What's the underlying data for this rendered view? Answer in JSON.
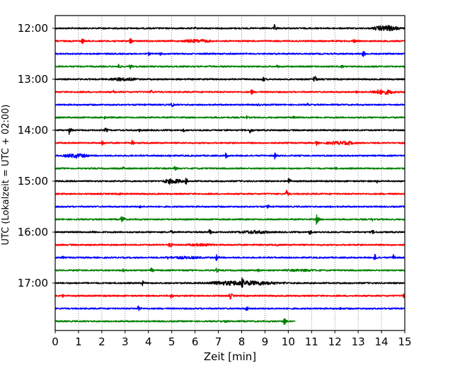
{
  "chart_data": {
    "type": "line",
    "chart_subtype": "helicorder",
    "xlabel": "Zeit  [min]",
    "ylabel": "UTC (Lokalzeit = UTC + 02:00)",
    "xlim": [
      0,
      15
    ],
    "x_ticks": [
      "0",
      "1",
      "2",
      "3",
      "4",
      "5",
      "6",
      "7",
      "8",
      "9",
      "10",
      "11",
      "12",
      "13",
      "14",
      "15"
    ],
    "y_tick_labels": [
      "12:00",
      "13:00",
      "14:00",
      "15:00",
      "16:00",
      "17:00"
    ],
    "row_minutes": 15,
    "row_start_times": [
      "12:00",
      "12:15",
      "12:30",
      "12:45",
      "13:00",
      "13:15",
      "13:30",
      "13:45",
      "14:00",
      "14:15",
      "14:30",
      "14:45",
      "15:00",
      "15:15",
      "15:30",
      "15:45",
      "16:00",
      "16:15",
      "16:30",
      "16:45",
      "17:00",
      "17:15",
      "17:30",
      "17:45"
    ],
    "color_cycle": [
      "#000000",
      "#ff0000",
      "#0000ff",
      "#008000"
    ],
    "last_row_end_minute": 10.3,
    "vertical_grid": "dotted",
    "events": [
      {
        "row": 0,
        "t": 9.4,
        "a": 6
      },
      {
        "row": 0,
        "t": 14.2,
        "a": 5
      },
      {
        "row": 0,
        "t": 3.1,
        "a": 2
      },
      {
        "row": 0,
        "t": 6.0,
        "a": 2
      },
      {
        "row": 1,
        "t": 1.15,
        "a": 5
      },
      {
        "row": 1,
        "t": 3.2,
        "a": 6
      },
      {
        "row": 1,
        "t": 2.5,
        "a": 3
      },
      {
        "row": 1,
        "t": 12.8,
        "a": 4
      },
      {
        "row": 1,
        "t": 6.5,
        "a": 2
      },
      {
        "row": 2,
        "t": 4.0,
        "a": 3
      },
      {
        "row": 2,
        "t": 4.5,
        "a": 3
      },
      {
        "row": 2,
        "t": 13.2,
        "a": 6
      },
      {
        "row": 2,
        "t": 7.5,
        "a": 2
      },
      {
        "row": 3,
        "t": 2.7,
        "a": 5
      },
      {
        "row": 3,
        "t": 3.2,
        "a": 5
      },
      {
        "row": 3,
        "t": 9.5,
        "a": 3
      },
      {
        "row": 3,
        "t": 12.3,
        "a": 3
      },
      {
        "row": 3,
        "t": 6.6,
        "a": 2
      },
      {
        "row": 4,
        "t": 2.8,
        "a": 3
      },
      {
        "row": 4,
        "t": 8.9,
        "a": 5
      },
      {
        "row": 4,
        "t": 11.1,
        "a": 8
      },
      {
        "row": 4,
        "t": 7.6,
        "a": 2
      },
      {
        "row": 5,
        "t": 2.5,
        "a": 3
      },
      {
        "row": 5,
        "t": 4.1,
        "a": 4
      },
      {
        "row": 5,
        "t": 8.4,
        "a": 5
      },
      {
        "row": 5,
        "t": 12.9,
        "a": 3
      },
      {
        "row": 5,
        "t": 14.0,
        "a": 5
      },
      {
        "row": 6,
        "t": 5.0,
        "a": 5
      },
      {
        "row": 6,
        "t": 3.8,
        "a": 2
      },
      {
        "row": 6,
        "t": 10.8,
        "a": 3
      },
      {
        "row": 6,
        "t": 8.7,
        "a": 3
      },
      {
        "row": 7,
        "t": 2.1,
        "a": 3
      },
      {
        "row": 7,
        "t": 8.2,
        "a": 3
      },
      {
        "row": 7,
        "t": 10.2,
        "a": 3
      },
      {
        "row": 8,
        "t": 0.6,
        "a": 6
      },
      {
        "row": 8,
        "t": 2.15,
        "a": 5
      },
      {
        "row": 8,
        "t": 3.6,
        "a": 3
      },
      {
        "row": 8,
        "t": 8.35,
        "a": 6
      },
      {
        "row": 8,
        "t": 5.5,
        "a": 3
      },
      {
        "row": 8,
        "t": 7.3,
        "a": 3
      },
      {
        "row": 9,
        "t": 2.0,
        "a": 5
      },
      {
        "row": 9,
        "t": 3.3,
        "a": 4
      },
      {
        "row": 9,
        "t": 11.2,
        "a": 4
      },
      {
        "row": 9,
        "t": 12.6,
        "a": 4
      },
      {
        "row": 10,
        "t": 0.9,
        "a": 4
      },
      {
        "row": 10,
        "t": 7.3,
        "a": 5
      },
      {
        "row": 10,
        "t": 9.4,
        "a": 6
      },
      {
        "row": 10,
        "t": 4.9,
        "a": 3
      },
      {
        "row": 11,
        "t": 2.9,
        "a": 3
      },
      {
        "row": 11,
        "t": 5.1,
        "a": 5
      },
      {
        "row": 11,
        "t": 12.0,
        "a": 3
      },
      {
        "row": 12,
        "t": 4.9,
        "a": 5
      },
      {
        "row": 12,
        "t": 5.6,
        "a": 6
      },
      {
        "row": 12,
        "t": 10.0,
        "a": 6
      },
      {
        "row": 12,
        "t": 13.8,
        "a": 3
      },
      {
        "row": 13,
        "t": 2.8,
        "a": 3
      },
      {
        "row": 13,
        "t": 9.9,
        "a": 7
      },
      {
        "row": 14,
        "t": 3.6,
        "a": 3
      },
      {
        "row": 14,
        "t": 9.1,
        "a": 4
      },
      {
        "row": 14,
        "t": 11.8,
        "a": 2
      },
      {
        "row": 15,
        "t": 2.85,
        "a": 8
      },
      {
        "row": 15,
        "t": 11.2,
        "a": 8
      },
      {
        "row": 15,
        "t": 13.6,
        "a": 3
      },
      {
        "row": 16,
        "t": 1.6,
        "a": 3
      },
      {
        "row": 16,
        "t": 4.95,
        "a": 4
      },
      {
        "row": 16,
        "t": 6.6,
        "a": 6
      },
      {
        "row": 16,
        "t": 10.9,
        "a": 5
      },
      {
        "row": 16,
        "t": 13.6,
        "a": 4
      },
      {
        "row": 17,
        "t": 4.9,
        "a": 6
      },
      {
        "row": 17,
        "t": 3.0,
        "a": 2
      },
      {
        "row": 17,
        "t": 9.5,
        "a": 2
      },
      {
        "row": 18,
        "t": 0.3,
        "a": 3
      },
      {
        "row": 18,
        "t": 6.9,
        "a": 6
      },
      {
        "row": 18,
        "t": 13.7,
        "a": 6
      },
      {
        "row": 18,
        "t": 14.5,
        "a": 6
      },
      {
        "row": 18,
        "t": 4.8,
        "a": 3
      },
      {
        "row": 19,
        "t": 2.9,
        "a": 3
      },
      {
        "row": 19,
        "t": 4.1,
        "a": 5
      },
      {
        "row": 19,
        "t": 6.9,
        "a": 5
      },
      {
        "row": 19,
        "t": 8.7,
        "a": 3
      },
      {
        "row": 20,
        "t": 3.7,
        "a": 6
      },
      {
        "row": 20,
        "t": 8.0,
        "a": 10
      },
      {
        "row": 20,
        "t": 7.5,
        "a": 4
      },
      {
        "row": 20,
        "t": 9.8,
        "a": 3
      },
      {
        "row": 21,
        "t": 0.3,
        "a": 3
      },
      {
        "row": 21,
        "t": 4.95,
        "a": 5
      },
      {
        "row": 21,
        "t": 7.5,
        "a": 6
      },
      {
        "row": 21,
        "t": 14.95,
        "a": 5
      },
      {
        "row": 22,
        "t": 3.55,
        "a": 6
      },
      {
        "row": 22,
        "t": 8.2,
        "a": 5
      },
      {
        "row": 22,
        "t": 12.2,
        "a": 3
      },
      {
        "row": 23,
        "t": 7.3,
        "a": 3
      },
      {
        "row": 23,
        "t": 9.8,
        "a": 8
      }
    ],
    "wavetrains": [
      {
        "row": 0,
        "t1": 13.6,
        "t2": 14.8,
        "a": 4
      },
      {
        "row": 1,
        "t1": 5.4,
        "t2": 6.8,
        "a": 2.5
      },
      {
        "row": 4,
        "t1": 2.2,
        "t2": 3.6,
        "a": 2.5
      },
      {
        "row": 5,
        "t1": 13.5,
        "t2": 14.6,
        "a": 3.5
      },
      {
        "row": 9,
        "t1": 11.5,
        "t2": 13.0,
        "a": 2.5
      },
      {
        "row": 10,
        "t1": 0.3,
        "t2": 1.5,
        "a": 3
      },
      {
        "row": 12,
        "t1": 4.6,
        "t2": 5.5,
        "a": 3.5
      },
      {
        "row": 16,
        "t1": 7.8,
        "t2": 9.3,
        "a": 2.5
      },
      {
        "row": 17,
        "t1": 5.5,
        "t2": 7.0,
        "a": 2
      },
      {
        "row": 18,
        "t1": 4.5,
        "t2": 6.5,
        "a": 2
      },
      {
        "row": 19,
        "t1": 9.6,
        "t2": 11.6,
        "a": 1.8
      },
      {
        "row": 20,
        "t1": 6.4,
        "t2": 9.6,
        "a": 3.5
      }
    ]
  }
}
